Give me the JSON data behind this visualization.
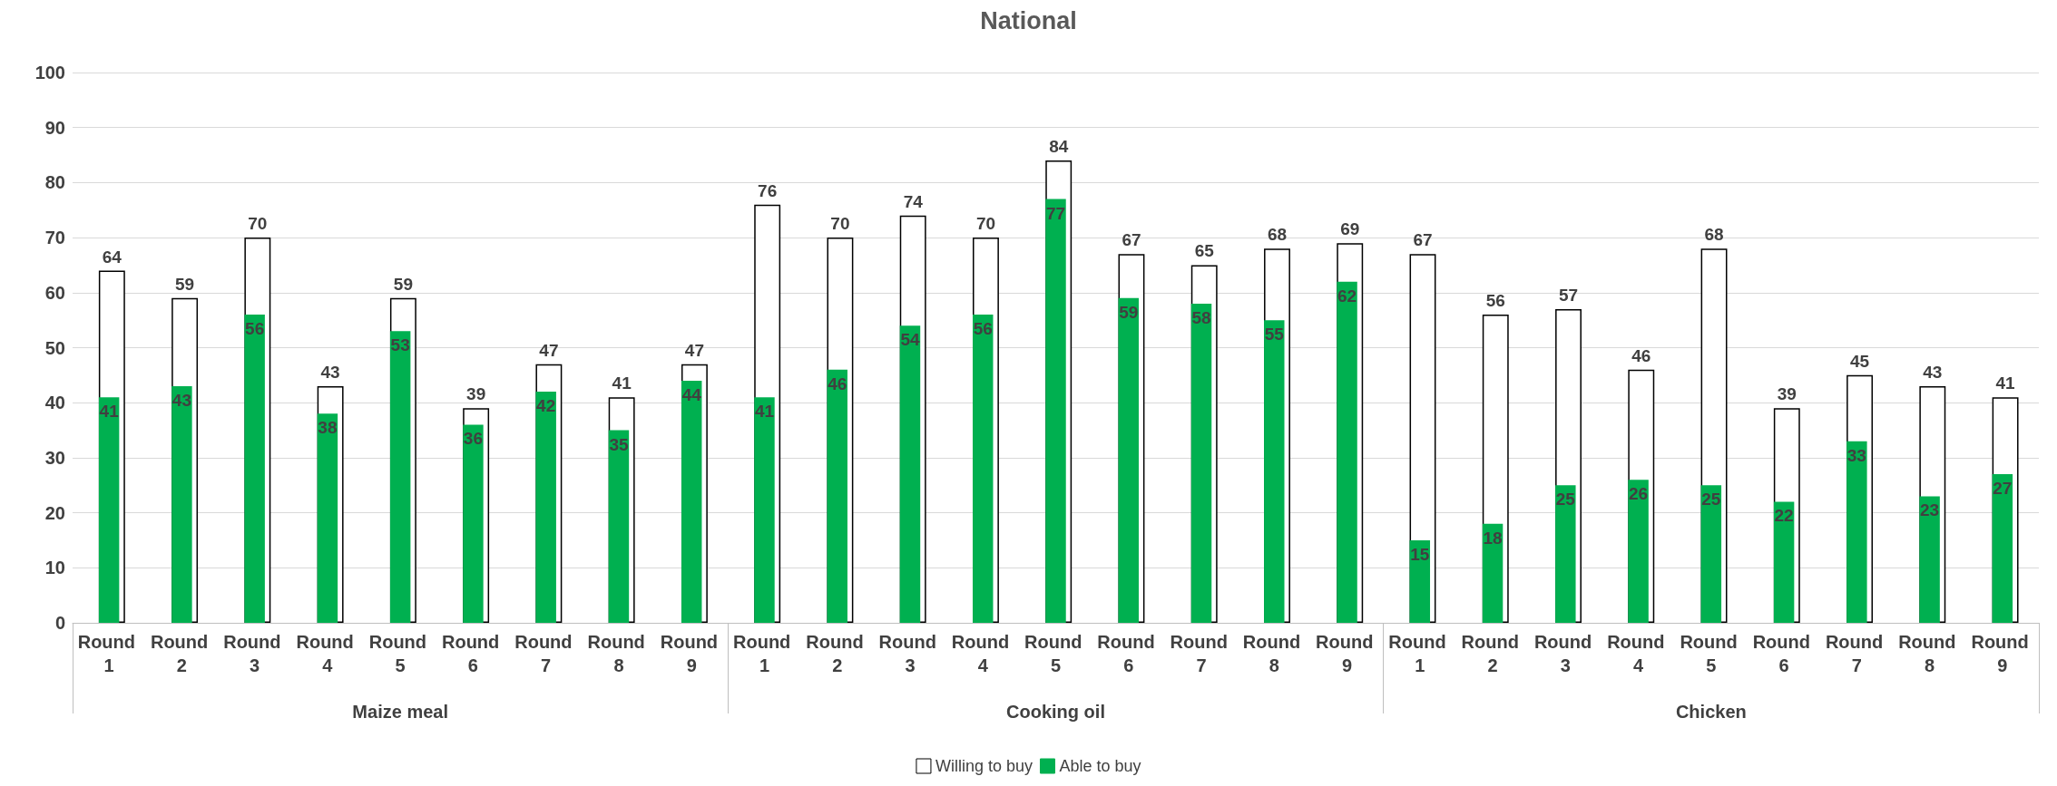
{
  "chart_data": {
    "type": "bar",
    "title": "National",
    "categories": [
      "Round 1",
      "Round 2",
      "Round 3",
      "Round 4",
      "Round 5",
      "Round 6",
      "Round 7",
      "Round 8",
      "Round 9",
      "Round 1",
      "Round 2",
      "Round 3",
      "Round 4",
      "Round 5",
      "Round 6",
      "Round 7",
      "Round 8",
      "Round 9",
      "Round 1",
      "Round 2",
      "Round 3",
      "Round 4",
      "Round 5",
      "Round 6",
      "Round 7",
      "Round 8",
      "Round 9"
    ],
    "series": [
      {
        "name": "Willing to buy",
        "color": "#ffffff",
        "values": [
          64,
          59,
          70,
          43,
          59,
          39,
          47,
          41,
          47,
          76,
          70,
          74,
          70,
          84,
          67,
          65,
          68,
          69,
          67,
          56,
          57,
          46,
          68,
          39,
          45,
          43,
          41
        ]
      },
      {
        "name": "Able to buy",
        "color": "#00b050",
        "values": [
          41,
          43,
          56,
          38,
          53,
          36,
          42,
          35,
          44,
          41,
          46,
          54,
          56,
          77,
          59,
          58,
          55,
          62,
          15,
          18,
          25,
          26,
          25,
          22,
          33,
          23,
          27
        ]
      }
    ],
    "annotations": [
      "Maize meal",
      "Cooking oil",
      "Chicken"
    ],
    "ylim": [
      0,
      100
    ],
    "yticks": [
      0,
      10,
      20,
      30,
      40,
      50,
      60,
      70,
      80,
      90,
      100
    ],
    "grid": "y",
    "legend": "bottom",
    "data_labels": true
  }
}
